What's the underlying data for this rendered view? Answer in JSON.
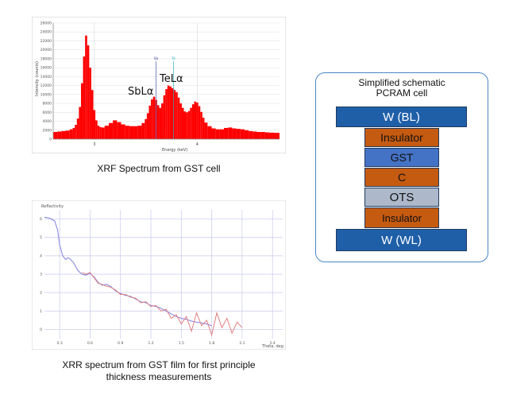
{
  "xrf": {
    "caption": "XRF Spectrum from GST cell",
    "annotations": {
      "sb": "SbLα",
      "te": "TeLα"
    },
    "marker_labels": {
      "sb": "Sb",
      "te": "Te"
    }
  },
  "xrr": {
    "caption_line1": "XRR spectrum from GST film for first principle",
    "caption_line2": "thickness measurements"
  },
  "schematic": {
    "title_line1": "Simplified schematic",
    "title_line2": "PCRAM cell",
    "layers": [
      {
        "label": "W (BL)",
        "color": "#1f5fa8",
        "text_color": "#ffffff"
      },
      {
        "label": "Insulator",
        "color": "#c55a11",
        "text_color": "#111111"
      },
      {
        "label": "GST",
        "color": "#4472c4",
        "text_color": "#111111"
      },
      {
        "label": "C",
        "color": "#c55a11",
        "text_color": "#111111"
      },
      {
        "label": "OTS",
        "color": "#adb9ca",
        "text_color": "#111111"
      },
      {
        "label": "Insulator",
        "color": "#c55a11",
        "text_color": "#111111"
      },
      {
        "label": "W (WL)",
        "color": "#1f5fa8",
        "text_color": "#ffffff"
      }
    ]
  },
  "chart_data": [
    {
      "type": "bar",
      "title": "",
      "xlabel": "Energy (keV)",
      "ylabel": "Intensity (counts)",
      "xlim": [
        2.6,
        4.8
      ],
      "ylim": [
        0,
        26000
      ],
      "xticks": [
        3,
        4
      ],
      "yticks": [
        0,
        2000,
        4000,
        6000,
        8000,
        10000,
        12000,
        14000,
        16000,
        18000,
        20000,
        22000,
        24000,
        26000
      ],
      "grid": true,
      "color": "#ff0000",
      "peaks": [
        {
          "label": "SbLα",
          "energy_keV": 3.6,
          "counts": 9500
        },
        {
          "label": "TeLα",
          "energy_keV": 3.77,
          "counts": 11500
        }
      ],
      "x": [
        2.62,
        2.66,
        2.7,
        2.74,
        2.78,
        2.8,
        2.82,
        2.84,
        2.86,
        2.88,
        2.9,
        2.92,
        2.94,
        2.96,
        2.98,
        3.0,
        3.02,
        3.04,
        3.06,
        3.08,
        3.12,
        3.16,
        3.2,
        3.24,
        3.28,
        3.32,
        3.36,
        3.4,
        3.44,
        3.48,
        3.5,
        3.52,
        3.54,
        3.56,
        3.58,
        3.6,
        3.62,
        3.64,
        3.66,
        3.68,
        3.7,
        3.72,
        3.74,
        3.76,
        3.78,
        3.8,
        3.82,
        3.84,
        3.86,
        3.88,
        3.9,
        3.92,
        3.94,
        3.96,
        3.98,
        4.0,
        4.02,
        4.04,
        4.06,
        4.08,
        4.12,
        4.16,
        4.2,
        4.24,
        4.28,
        4.32,
        4.36,
        4.4,
        4.44,
        4.48,
        4.52,
        4.56,
        4.6,
        4.64,
        4.68,
        4.72,
        4.78
      ],
      "values": [
        1600,
        1700,
        1800,
        1900,
        2200,
        2500,
        3200,
        4600,
        7200,
        12500,
        18500,
        23200,
        21000,
        16000,
        11000,
        6500,
        4200,
        3000,
        2700,
        2600,
        3000,
        3600,
        4200,
        3800,
        3300,
        3000,
        2900,
        2900,
        3000,
        3600,
        4500,
        5800,
        7500,
        8900,
        9500,
        8800,
        7600,
        7000,
        8000,
        9800,
        11200,
        12000,
        11800,
        11400,
        11000,
        10500,
        9300,
        8000,
        7000,
        6200,
        6000,
        6300,
        7000,
        7800,
        8400,
        8200,
        7400,
        6100,
        4800,
        3700,
        2900,
        2400,
        2200,
        2200,
        2500,
        2600,
        2400,
        2300,
        2200,
        2000,
        1800,
        1700,
        1600,
        1600,
        1500,
        1450,
        1400
      ]
    },
    {
      "type": "line",
      "title": "",
      "xlabel": "Theta, deg",
      "ylabel": "Reflectivity",
      "xlim": [
        0.15,
        2.5
      ],
      "ylim": [
        -0.5,
        6.5
      ],
      "xticks": [
        0.3,
        0.6,
        0.9,
        1.2,
        1.5,
        1.8,
        2.1,
        2.4
      ],
      "yticks": [
        0,
        1,
        2,
        3,
        4,
        5,
        6
      ],
      "grid": true,
      "series": [
        {
          "color": "#8080e0",
          "x": [
            0.15,
            0.2,
            0.25,
            0.28,
            0.3,
            0.33,
            0.36,
            0.38,
            0.4,
            0.44,
            0.48,
            0.52,
            0.56,
            0.6,
            0.64,
            0.68,
            0.72,
            0.76,
            0.8,
            0.85,
            0.9,
            0.95,
            1.0,
            1.05,
            1.1,
            1.15,
            1.2,
            1.25,
            1.3,
            1.35,
            1.4,
            1.45,
            1.5,
            1.55,
            1.6,
            1.65,
            1.7,
            1.75,
            1.8
          ],
          "values": [
            6.1,
            6.05,
            5.9,
            5.4,
            4.6,
            4.0,
            3.8,
            3.9,
            3.85,
            3.6,
            3.2,
            3.0,
            2.95,
            3.05,
            2.85,
            2.55,
            2.4,
            2.45,
            2.35,
            2.1,
            1.95,
            1.85,
            1.8,
            1.65,
            1.5,
            1.45,
            1.3,
            1.25,
            1.15,
            1.0,
            0.85,
            0.7,
            0.6,
            0.55,
            0.45,
            0.4,
            0.35,
            0.3,
            0.2
          ]
        },
        {
          "color": "#e08080",
          "x": [
            0.52,
            0.56,
            0.6,
            0.64,
            0.68,
            0.72,
            0.76,
            0.8,
            0.85,
            0.9,
            0.95,
            1.0,
            1.05,
            1.1,
            1.15,
            1.2,
            1.25,
            1.3,
            1.35,
            1.4,
            1.45,
            1.5,
            1.55,
            1.6,
            1.65,
            1.7,
            1.75,
            1.8,
            1.85,
            1.9,
            1.95,
            2.0,
            2.05,
            2.1
          ],
          "values": [
            3.1,
            3.0,
            3.1,
            2.8,
            2.5,
            2.45,
            2.35,
            2.3,
            2.15,
            1.9,
            1.9,
            1.75,
            1.7,
            1.45,
            1.5,
            1.25,
            1.3,
            1.0,
            1.1,
            0.6,
            0.8,
            0.3,
            0.7,
            -0.1,
            0.9,
            0.2,
            0.5,
            -0.3,
            0.9,
            0.1,
            0.6,
            -0.2,
            0.4,
            0.1
          ]
        }
      ]
    }
  ]
}
